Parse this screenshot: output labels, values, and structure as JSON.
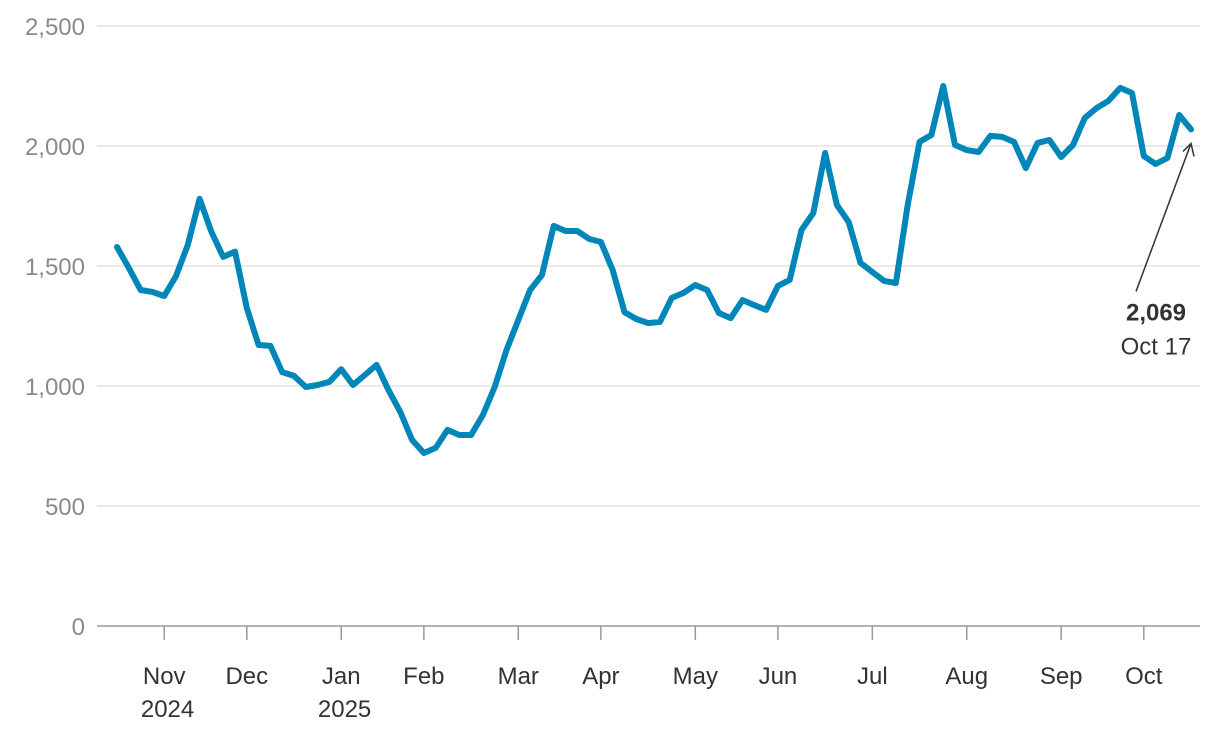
{
  "chart_data": {
    "type": "line",
    "categories": [
      null,
      null,
      null,
      null,
      "Nov 2024",
      null,
      null,
      null,
      null,
      null,
      null,
      "Dec",
      null,
      null,
      null,
      null,
      null,
      null,
      null,
      "Jan 2025",
      null,
      null,
      null,
      null,
      null,
      null,
      "Feb",
      null,
      null,
      null,
      null,
      null,
      null,
      null,
      "Mar",
      null,
      null,
      null,
      null,
      null,
      null,
      "Apr",
      null,
      null,
      null,
      null,
      null,
      null,
      null,
      "May",
      null,
      null,
      null,
      null,
      null,
      null,
      "Jun",
      null,
      null,
      null,
      null,
      null,
      null,
      null,
      "Jul",
      null,
      null,
      null,
      null,
      null,
      null,
      null,
      "Aug",
      null,
      null,
      null,
      null,
      null,
      null,
      null,
      "Sep",
      null,
      null,
      null,
      null,
      null,
      null,
      "Oct",
      null,
      null,
      null,
      null
    ],
    "series": [
      {
        "color": "#0086b8",
        "values": [
          1579,
          1492,
          1400,
          1392,
          1375,
          1458,
          1588,
          1780,
          1642,
          1538,
          1560,
          1325,
          1171,
          1167,
          1058,
          1042,
          996,
          1004,
          1017,
          1070,
          1004,
          1046,
          1088,
          983,
          892,
          775,
          721,
          742,
          817,
          796,
          796,
          879,
          996,
          1150,
          1275,
          1400,
          1462,
          1667,
          1646,
          1646,
          1613,
          1600,
          1483,
          1308,
          1279,
          1262,
          1267,
          1367,
          1388,
          1421,
          1400,
          1304,
          1283,
          1358,
          1337,
          1317,
          1417,
          1442,
          1650,
          1721,
          1971,
          1754,
          1683,
          1513,
          1475,
          1438,
          1429,
          1754,
          2017,
          2046,
          2250,
          2004,
          1983,
          1975,
          2042,
          2038,
          2017,
          1908,
          2013,
          2025,
          1954,
          2004,
          2117,
          2158,
          2188,
          2242,
          2221,
          1958,
          1925,
          1950,
          2129,
          2069
        ],
        "value_labels": [
          null,
          null,
          null,
          null,
          null,
          null,
          null,
          null,
          null,
          null,
          null,
          null,
          null,
          null,
          null,
          null,
          null,
          null,
          null,
          null,
          null,
          null,
          null,
          null,
          null,
          null,
          null,
          null,
          null,
          null,
          null,
          null,
          null,
          null,
          null,
          null,
          null,
          null,
          null,
          null,
          null,
          null,
          null,
          null,
          null,
          null,
          null,
          null,
          null,
          null,
          null,
          null,
          null,
          null,
          null,
          null,
          null,
          null,
          null,
          null,
          null,
          null,
          null,
          null,
          null,
          null,
          null,
          null,
          null,
          null,
          null,
          null,
          null,
          null,
          null,
          null,
          null,
          null,
          null,
          null,
          null,
          null,
          null,
          null,
          null,
          null,
          null,
          null,
          null,
          null,
          null,
          "2,069"
        ]
      }
    ],
    "annotation": "Oct 17",
    "ylim": [
      0,
      2500
    ],
    "yticks": [
      0,
      500,
      {
        "value": 1000,
        "label": "1,000"
      },
      {
        "value": 1500,
        "label": "1,500"
      },
      {
        "value": 2000,
        "label": "2,000"
      },
      {
        "value": 2500,
        "label": "2,500"
      }
    ],
    "grid": true
  }
}
